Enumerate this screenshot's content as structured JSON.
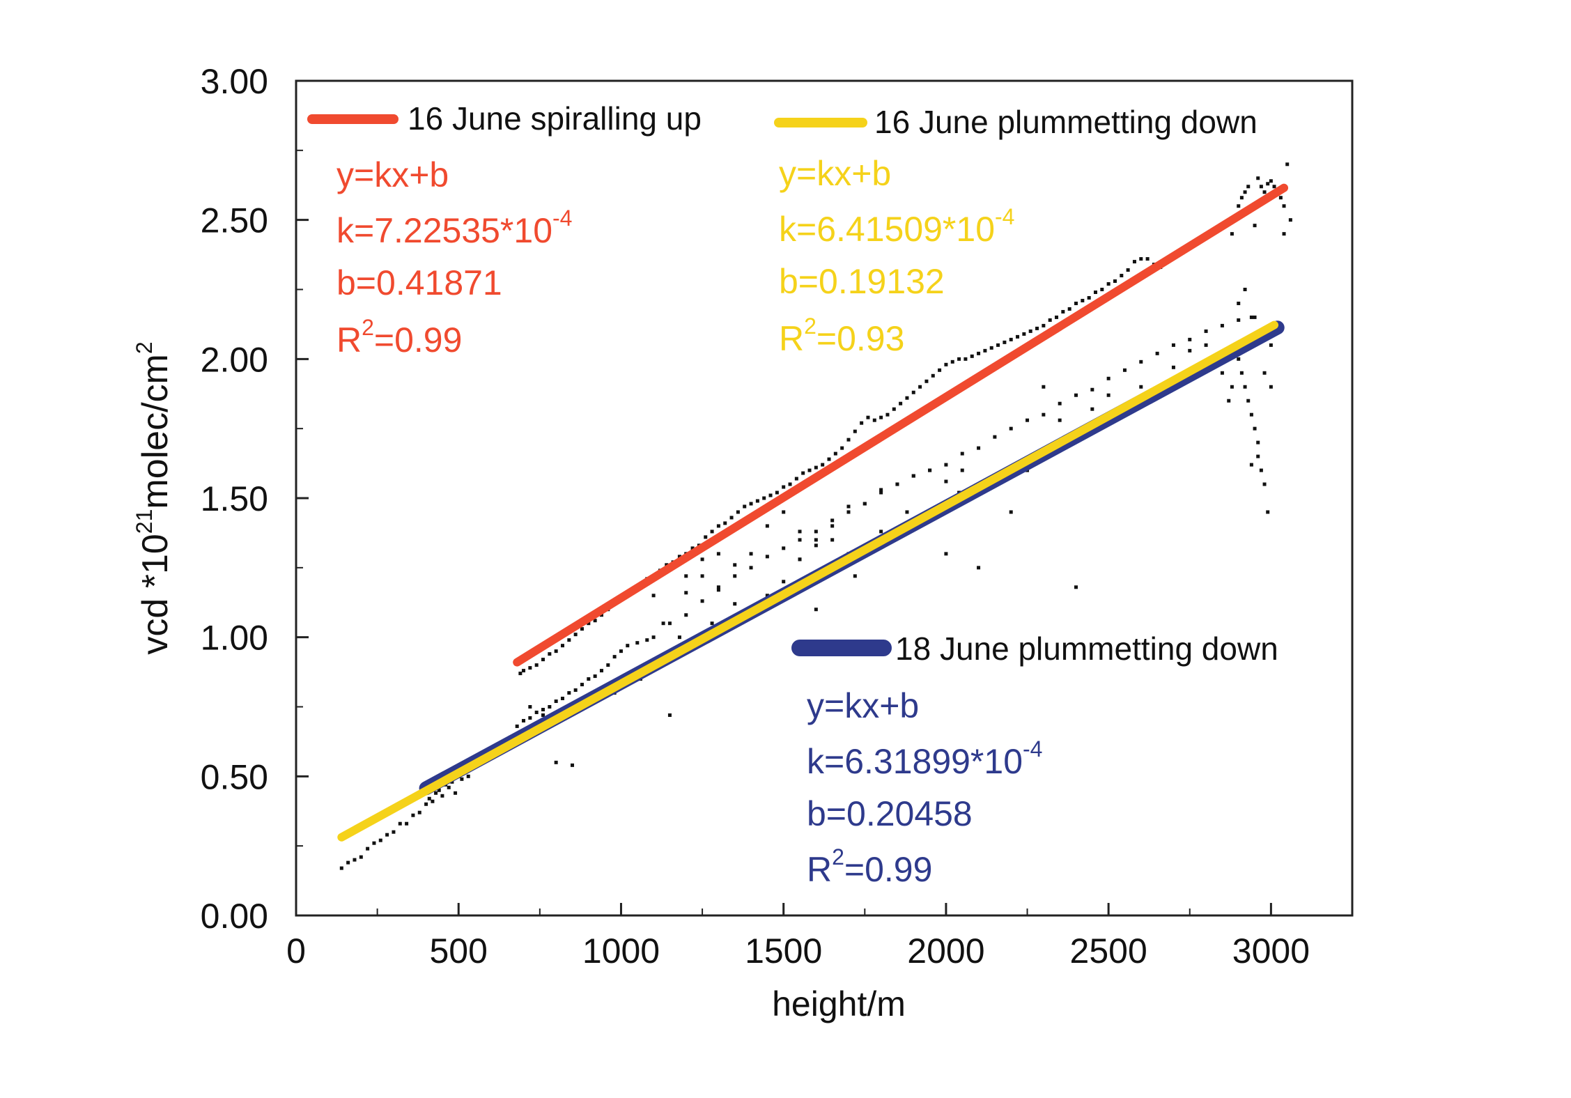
{
  "chart_data": {
    "type": "scatter",
    "xlabel": "height/m",
    "ylabel": {
      "base": "vcd  *10",
      "sup": "21",
      "mid": "molec/cm",
      "sup2": "2"
    },
    "xlim": [
      0,
      3250
    ],
    "ylim": [
      0,
      3.0
    ],
    "x_ticks": [
      0,
      500,
      1000,
      1500,
      2000,
      2500,
      3000
    ],
    "x_tick_labels": [
      "0",
      "500",
      "1000",
      "1500",
      "2000",
      "2500",
      "3000"
    ],
    "y_ticks": [
      0,
      0.5,
      1.0,
      1.5,
      2.0,
      2.5,
      3.0
    ],
    "y_tick_labels": [
      "0.00",
      "0.50",
      "1.00",
      "1.50",
      "2.00",
      "2.50",
      "3.00"
    ],
    "grid": false,
    "colors": {
      "red": "#f04a2f",
      "yellow": "#f5d21a",
      "blue": "#2e3a8c",
      "points": "#111111",
      "axis": "#222222"
    },
    "series": [
      {
        "name": "16 June spiralling up",
        "color": "#f04a2f",
        "fit": {
          "k": 0.000722535,
          "b": 0.41871,
          "x_range": [
            680,
            3040
          ]
        },
        "equation": {
          "line1": "y=kx+b",
          "k_prefix": "k=7.22535*10",
          "k_exp": "-4",
          "b_text": "b=0.41871",
          "r_prefix": "R",
          "r_sup": "2",
          "r_suffix": "=0.99"
        }
      },
      {
        "name": "16 June plummetting down",
        "color": "#f5d21a",
        "fit": {
          "k": 0.000641509,
          "b": 0.19132,
          "x_range": [
            140,
            3010
          ]
        },
        "equation": {
          "line1": "y=kx+b",
          "k_prefix": "k=6.41509*10",
          "k_exp": "-4",
          "b_text": "b=0.19132",
          "r_prefix": "R",
          "r_sup": "2",
          "r_suffix": "=0.93"
        }
      },
      {
        "name": "18 June plummetting down",
        "color": "#2e3a8c",
        "fit": {
          "k": 0.000631899,
          "b": 0.20458,
          "x_range": [
            400,
            3020
          ]
        },
        "equation": {
          "line1": "y=kx+b",
          "k_prefix": "k=6.31899*10",
          "k_exp": "-4",
          "b_text": "b=0.20458",
          "r_prefix": "R",
          "r_sup": "2",
          "r_suffix": "=0.99"
        }
      }
    ],
    "scatter_points": [
      [
        140,
        0.17
      ],
      [
        160,
        0.19
      ],
      [
        180,
        0.2
      ],
      [
        200,
        0.21
      ],
      [
        220,
        0.24
      ],
      [
        240,
        0.26
      ],
      [
        260,
        0.27
      ],
      [
        280,
        0.29
      ],
      [
        300,
        0.3
      ],
      [
        320,
        0.33
      ],
      [
        340,
        0.33
      ],
      [
        360,
        0.36
      ],
      [
        380,
        0.37
      ],
      [
        400,
        0.4
      ],
      [
        410,
        0.42
      ],
      [
        420,
        0.41
      ],
      [
        430,
        0.44
      ],
      [
        440,
        0.45
      ],
      [
        450,
        0.43
      ],
      [
        460,
        0.47
      ],
      [
        470,
        0.46
      ],
      [
        480,
        0.48
      ],
      [
        490,
        0.44
      ],
      [
        500,
        0.5
      ],
      [
        510,
        0.49
      ],
      [
        520,
        0.52
      ],
      [
        530,
        0.5
      ],
      [
        540,
        0.53
      ],
      [
        560,
        0.55
      ],
      [
        580,
        0.57
      ],
      [
        600,
        0.58
      ],
      [
        620,
        0.6
      ],
      [
        640,
        0.62
      ],
      [
        660,
        0.64
      ],
      [
        680,
        0.68
      ],
      [
        700,
        0.7
      ],
      [
        720,
        0.71
      ],
      [
        740,
        0.73
      ],
      [
        760,
        0.74
      ],
      [
        780,
        0.75
      ],
      [
        800,
        0.77
      ],
      [
        820,
        0.78
      ],
      [
        840,
        0.8
      ],
      [
        860,
        0.81
      ],
      [
        880,
        0.83
      ],
      [
        900,
        0.85
      ],
      [
        920,
        0.86
      ],
      [
        940,
        0.88
      ],
      [
        960,
        0.9
      ],
      [
        980,
        0.93
      ],
      [
        1000,
        0.95
      ],
      [
        1020,
        0.97
      ],
      [
        1050,
        0.98
      ],
      [
        1080,
        0.99
      ],
      [
        1100,
        1.0
      ],
      [
        1150,
        1.05
      ],
      [
        1200,
        1.08
      ],
      [
        1250,
        1.13
      ],
      [
        1300,
        1.17
      ],
      [
        1350,
        1.22
      ],
      [
        1400,
        1.25
      ],
      [
        1450,
        1.29
      ],
      [
        1500,
        1.32
      ],
      [
        1550,
        1.35
      ],
      [
        1600,
        1.38
      ],
      [
        1650,
        1.42
      ],
      [
        1700,
        1.45
      ],
      [
        1750,
        1.48
      ],
      [
        1800,
        1.52
      ],
      [
        1850,
        1.55
      ],
      [
        1900,
        1.58
      ],
      [
        1950,
        1.6
      ],
      [
        2000,
        1.62
      ],
      [
        2050,
        1.66
      ],
      [
        2100,
        1.68
      ],
      [
        2150,
        1.72
      ],
      [
        2200,
        1.75
      ],
      [
        2250,
        1.78
      ],
      [
        2300,
        1.8
      ],
      [
        2350,
        1.84
      ],
      [
        2400,
        1.87
      ],
      [
        2450,
        1.89
      ],
      [
        2500,
        1.93
      ],
      [
        2550,
        1.96
      ],
      [
        2600,
        1.99
      ],
      [
        2650,
        2.02
      ],
      [
        2700,
        2.05
      ],
      [
        2750,
        2.07
      ],
      [
        2800,
        2.1
      ],
      [
        2850,
        2.12
      ],
      [
        2900,
        2.14
      ],
      [
        2950,
        2.15
      ],
      [
        2980,
        2.1
      ],
      [
        3000,
        2.05
      ],
      [
        690,
        0.87
      ],
      [
        700,
        0.88
      ],
      [
        720,
        0.89
      ],
      [
        740,
        0.9
      ],
      [
        760,
        0.92
      ],
      [
        780,
        0.94
      ],
      [
        800,
        0.95
      ],
      [
        820,
        0.97
      ],
      [
        840,
        0.99
      ],
      [
        860,
        1.01
      ],
      [
        880,
        1.03
      ],
      [
        900,
        1.05
      ],
      [
        920,
        1.06
      ],
      [
        940,
        1.08
      ],
      [
        960,
        1.1
      ],
      [
        980,
        1.12
      ],
      [
        1000,
        1.14
      ],
      [
        1020,
        1.15
      ],
      [
        1040,
        1.17
      ],
      [
        1060,
        1.19
      ],
      [
        1080,
        1.21
      ],
      [
        1100,
        1.22
      ],
      [
        1120,
        1.24
      ],
      [
        1140,
        1.26
      ],
      [
        1160,
        1.27
      ],
      [
        1180,
        1.29
      ],
      [
        1200,
        1.3
      ],
      [
        1220,
        1.32
      ],
      [
        1240,
        1.33
      ],
      [
        1260,
        1.36
      ],
      [
        1280,
        1.38
      ],
      [
        1300,
        1.4
      ],
      [
        1320,
        1.41
      ],
      [
        1340,
        1.43
      ],
      [
        1360,
        1.45
      ],
      [
        1380,
        1.47
      ],
      [
        1400,
        1.48
      ],
      [
        1420,
        1.49
      ],
      [
        1440,
        1.5
      ],
      [
        1460,
        1.51
      ],
      [
        1480,
        1.52
      ],
      [
        1500,
        1.54
      ],
      [
        1520,
        1.55
      ],
      [
        1540,
        1.57
      ],
      [
        1560,
        1.59
      ],
      [
        1580,
        1.6
      ],
      [
        1600,
        1.61
      ],
      [
        1620,
        1.62
      ],
      [
        1640,
        1.64
      ],
      [
        1660,
        1.66
      ],
      [
        1680,
        1.68
      ],
      [
        1700,
        1.71
      ],
      [
        1720,
        1.74
      ],
      [
        1740,
        1.77
      ],
      [
        1760,
        1.79
      ],
      [
        1780,
        1.78
      ],
      [
        1800,
        1.79
      ],
      [
        1820,
        1.8
      ],
      [
        1840,
        1.82
      ],
      [
        1860,
        1.84
      ],
      [
        1880,
        1.86
      ],
      [
        1900,
        1.88
      ],
      [
        1920,
        1.9
      ],
      [
        1940,
        1.92
      ],
      [
        1960,
        1.94
      ],
      [
        1980,
        1.96
      ],
      [
        2000,
        1.98
      ],
      [
        2020,
        1.99
      ],
      [
        2040,
        2.0
      ],
      [
        2060,
        2.0
      ],
      [
        2080,
        2.01
      ],
      [
        2100,
        2.02
      ],
      [
        2120,
        2.03
      ],
      [
        2140,
        2.04
      ],
      [
        2160,
        2.05
      ],
      [
        2180,
        2.06
      ],
      [
        2200,
        2.07
      ],
      [
        2220,
        2.08
      ],
      [
        2240,
        2.09
      ],
      [
        2260,
        2.1
      ],
      [
        2280,
        2.11
      ],
      [
        2300,
        2.12
      ],
      [
        2320,
        2.14
      ],
      [
        2340,
        2.15
      ],
      [
        2360,
        2.17
      ],
      [
        2380,
        2.18
      ],
      [
        2400,
        2.2
      ],
      [
        2420,
        2.21
      ],
      [
        2440,
        2.22
      ],
      [
        2460,
        2.24
      ],
      [
        2480,
        2.25
      ],
      [
        2500,
        2.27
      ],
      [
        2520,
        2.28
      ],
      [
        2540,
        2.3
      ],
      [
        2560,
        2.32
      ],
      [
        2580,
        2.35
      ],
      [
        2600,
        2.36
      ],
      [
        2620,
        2.36
      ],
      [
        2640,
        2.34
      ],
      [
        2660,
        2.33
      ],
      [
        2880,
        2.45
      ],
      [
        2890,
        2.5
      ],
      [
        2900,
        2.55
      ],
      [
        2910,
        2.58
      ],
      [
        2920,
        2.6
      ],
      [
        2930,
        2.62
      ],
      [
        2940,
        2.55
      ],
      [
        2950,
        2.48
      ],
      [
        2960,
        2.65
      ],
      [
        2970,
        2.62
      ],
      [
        2980,
        2.6
      ],
      [
        2990,
        2.63
      ],
      [
        3000,
        2.64
      ],
      [
        3010,
        2.62
      ],
      [
        3020,
        2.6
      ],
      [
        3030,
        2.58
      ],
      [
        3040,
        2.55
      ],
      [
        3050,
        2.7
      ],
      [
        3060,
        2.5
      ],
      [
        3040,
        2.45
      ],
      [
        2900,
        2.0
      ],
      [
        2910,
        1.95
      ],
      [
        2920,
        1.9
      ],
      [
        2930,
        1.85
      ],
      [
        2940,
        1.8
      ],
      [
        2950,
        1.75
      ],
      [
        2960,
        1.65
      ],
      [
        2970,
        1.6
      ],
      [
        2980,
        1.55
      ],
      [
        2990,
        1.45
      ],
      [
        2900,
        2.2
      ],
      [
        2920,
        2.25
      ],
      [
        2940,
        2.15
      ],
      [
        2960,
        2.08
      ],
      [
        2980,
        1.95
      ],
      [
        3000,
        1.9
      ],
      [
        2870,
        1.85
      ],
      [
        2880,
        1.9
      ],
      [
        2850,
        1.95
      ],
      [
        2960,
        1.7
      ],
      [
        2940,
        1.62
      ],
      [
        720,
        0.75
      ],
      [
        760,
        0.72
      ],
      [
        800,
        0.55
      ],
      [
        850,
        0.54
      ],
      [
        1150,
        0.72
      ],
      [
        1100,
        1.15
      ],
      [
        1200,
        1.22
      ],
      [
        1250,
        1.28
      ],
      [
        1300,
        1.3
      ],
      [
        1350,
        1.26
      ],
      [
        1400,
        1.3
      ],
      [
        1450,
        1.4
      ],
      [
        1500,
        1.45
      ],
      [
        1550,
        1.38
      ],
      [
        1600,
        1.35
      ],
      [
        1650,
        1.4
      ],
      [
        1700,
        1.47
      ],
      [
        1750,
        1.48
      ],
      [
        1800,
        1.53
      ],
      [
        1850,
        1.55
      ],
      [
        1900,
        1.58
      ],
      [
        1950,
        1.6
      ],
      [
        2000,
        1.56
      ],
      [
        2050,
        1.6
      ],
      [
        1200,
        1.16
      ],
      [
        1250,
        1.22
      ],
      [
        1300,
        1.18
      ],
      [
        1350,
        1.12
      ],
      [
        1400,
        1.08
      ],
      [
        1450,
        1.15
      ],
      [
        1500,
        1.2
      ],
      [
        1550,
        1.28
      ],
      [
        1600,
        1.33
      ],
      [
        1650,
        1.35
      ],
      [
        1700,
        1.3
      ],
      [
        1750,
        1.32
      ],
      [
        1800,
        1.38
      ],
      [
        2300,
        1.9
      ],
      [
        2350,
        1.78
      ],
      [
        2400,
        1.72
      ],
      [
        2450,
        1.82
      ],
      [
        2500,
        1.87
      ],
      [
        2600,
        1.9
      ],
      [
        2700,
        1.97
      ],
      [
        2750,
        2.03
      ],
      [
        2800,
        2.05
      ],
      [
        2100,
        1.25
      ],
      [
        2400,
        1.18
      ],
      [
        2000,
        1.3
      ],
      [
        2200,
        1.45
      ],
      [
        2250,
        1.6
      ],
      [
        1600,
        1.1
      ],
      [
        2150,
        1.55
      ],
      [
        1130,
        1.05
      ],
      [
        1180,
        1.0
      ],
      [
        1280,
        1.05
      ],
      [
        1060,
        0.85
      ],
      [
        980,
        0.8
      ],
      [
        920,
        0.78
      ],
      [
        1550,
        1.28
      ],
      [
        1720,
        1.22
      ],
      [
        1880,
        1.45
      ],
      [
        2040,
        1.52
      ]
    ]
  }
}
